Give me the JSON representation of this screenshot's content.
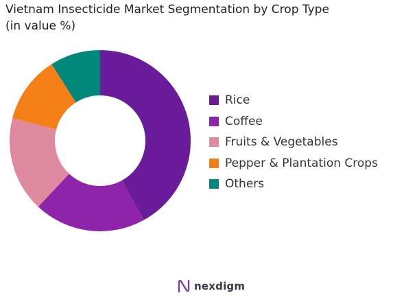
{
  "chart_data": {
    "type": "pie",
    "title": "Vietnam Insecticide Market Segmentation by Crop Type",
    "subtitle": "(in value %)",
    "style": "donut",
    "legend_position": "right",
    "categories": [
      "Rice",
      "Coffee",
      "Fruits & Vegetables",
      "Pepper & Plantation Crops",
      "Others"
    ],
    "values": [
      42,
      20,
      17,
      12,
      9
    ],
    "colors": [
      "#6a1b9a",
      "#8e24aa",
      "#e08aa0",
      "#f57f17",
      "#00897b"
    ]
  },
  "brand": {
    "name": "nexdigm",
    "logo_icon": "nexdigm-logo-icon"
  }
}
